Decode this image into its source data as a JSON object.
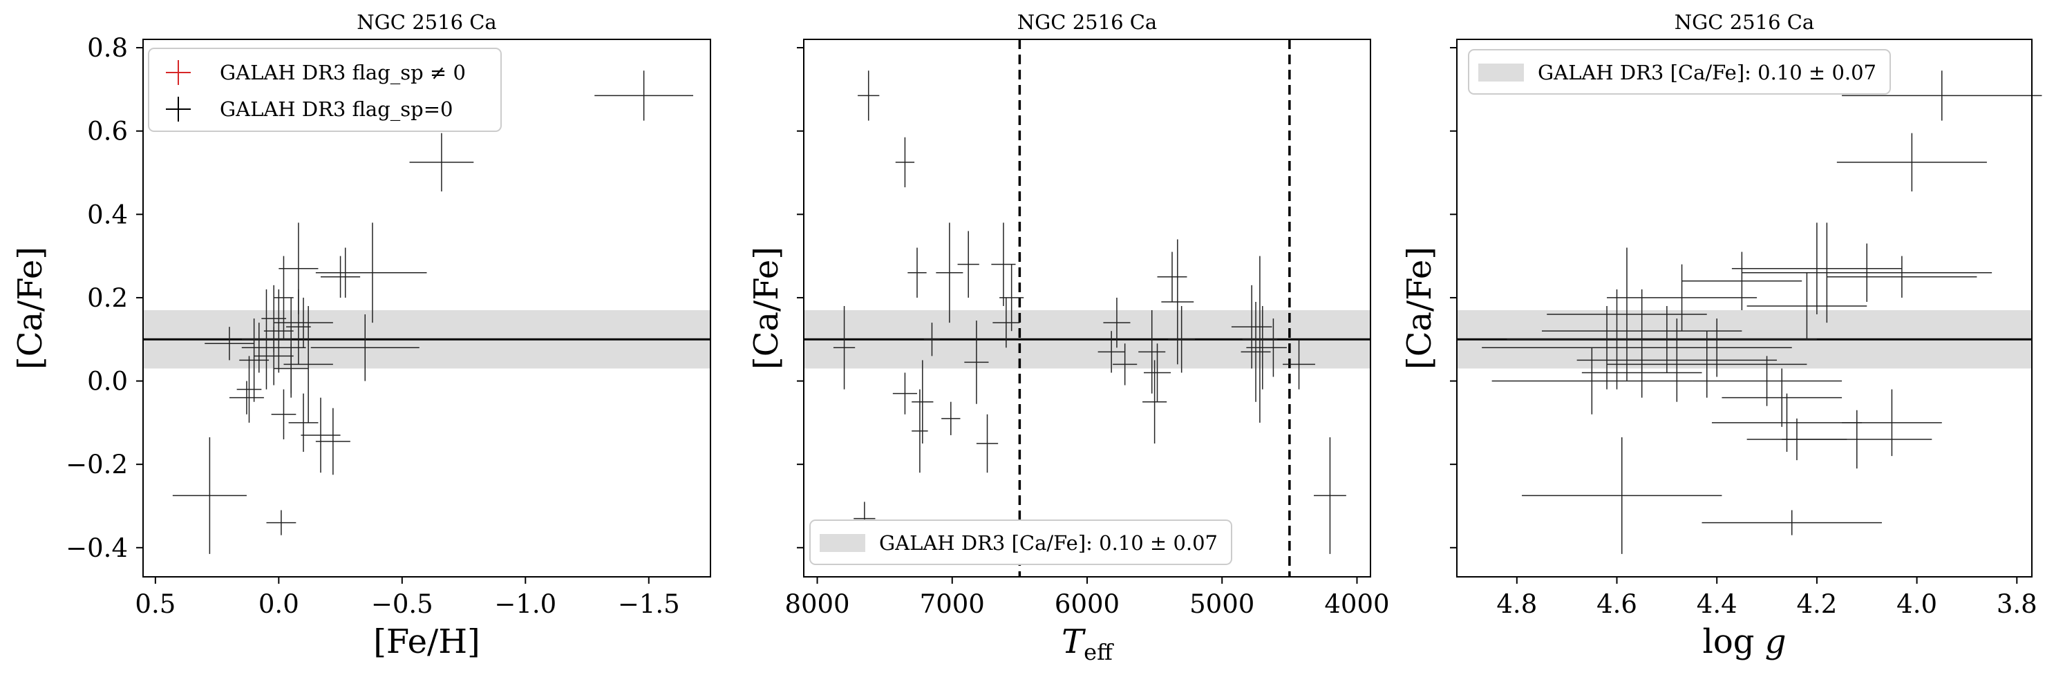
{
  "chart_data": [
    {
      "type": "scatter",
      "title": "NGC 2516 Ca",
      "xlabel": "[Fe/H]",
      "ylabel": "[Ca/Fe]",
      "xlim": [
        0.55,
        -1.75
      ],
      "ylim": [
        -0.47,
        0.82
      ],
      "xticks": [
        0.5,
        0.0,
        -0.5,
        -1.0,
        -1.5
      ],
      "xtick_labels": [
        "0.5",
        "0.0",
        "−0.5",
        "−1.0",
        "−1.5"
      ],
      "yticks": [
        -0.4,
        -0.2,
        0.0,
        0.2,
        0.4,
        0.6,
        0.8
      ],
      "ytick_labels": [
        "−0.4",
        "−0.2",
        "0.0",
        "0.2",
        "0.4",
        "0.6",
        "0.8"
      ],
      "band": {
        "center": 0.1,
        "low": 0.03,
        "high": 0.17
      },
      "legend": [
        {
          "label": "GALAH DR3 flag_sp ≠ 0",
          "color": "#d62728"
        },
        {
          "label": "GALAH DR3 flag_sp=0",
          "color": "#000000"
        }
      ],
      "points": [
        {
          "x": -1.48,
          "y": 0.685,
          "xerr": 0.2,
          "yerr": 0.06
        },
        {
          "x": -0.66,
          "y": 0.525,
          "xerr": 0.13,
          "yerr": 0.07
        },
        {
          "x": -0.27,
          "y": 0.26,
          "xerr": 0.12,
          "yerr": 0.06
        },
        {
          "x": -0.38,
          "y": 0.26,
          "xerr": 0.22,
          "yerr": 0.12
        },
        {
          "x": -0.25,
          "y": 0.25,
          "xerr": 0.08,
          "yerr": 0.05
        },
        {
          "x": 0.28,
          "y": -0.275,
          "xerr": 0.15,
          "yerr": 0.14
        },
        {
          "x": -0.01,
          "y": -0.34,
          "xerr": 0.06,
          "yerr": 0.03
        },
        {
          "x": 0.13,
          "y": -0.04,
          "xerr": 0.07,
          "yerr": 0.04
        },
        {
          "x": 0.12,
          "y": -0.02,
          "xerr": 0.05,
          "yerr": 0.08
        },
        {
          "x": 0.1,
          "y": 0.05,
          "xerr": 0.06,
          "yerr": 0.1
        },
        {
          "x": 0.05,
          "y": 0.1,
          "xerr": 0.1,
          "yerr": 0.12
        },
        {
          "x": 0.02,
          "y": 0.15,
          "xerr": 0.05,
          "yerr": 0.08
        },
        {
          "x": -0.02,
          "y": 0.2,
          "xerr": 0.04,
          "yerr": 0.1
        },
        {
          "x": -0.05,
          "y": 0.08,
          "xerr": 0.06,
          "yerr": 0.12
        },
        {
          "x": -0.1,
          "y": 0.14,
          "xerr": 0.12,
          "yerr": 0.06
        },
        {
          "x": -0.08,
          "y": 0.27,
          "xerr": 0.08,
          "yerr": 0.11
        },
        {
          "x": -0.12,
          "y": 0.04,
          "xerr": 0.1,
          "yerr": 0.14
        },
        {
          "x": -0.02,
          "y": -0.08,
          "xerr": 0.05,
          "yerr": 0.06
        },
        {
          "x": -0.1,
          "y": -0.1,
          "xerr": 0.06,
          "yerr": 0.07
        },
        {
          "x": -0.17,
          "y": -0.13,
          "xerr": 0.08,
          "yerr": 0.09
        },
        {
          "x": -0.22,
          "y": -0.145,
          "xerr": 0.07,
          "yerr": 0.08
        },
        {
          "x": -0.35,
          "y": 0.08,
          "xerr": 0.22,
          "yerr": 0.08
        },
        {
          "x": 0.2,
          "y": 0.09,
          "xerr": 0.1,
          "yerr": 0.04
        },
        {
          "x": 0.08,
          "y": 0.08,
          "xerr": 0.07,
          "yerr": 0.06
        },
        {
          "x": 0.0,
          "y": 0.12,
          "xerr": 0.06,
          "yerr": 0.1
        },
        {
          "x": -0.08,
          "y": 0.13,
          "xerr": 0.05,
          "yerr": 0.09
        },
        {
          "x": 0.02,
          "y": 0.06,
          "xerr": 0.08,
          "yerr": 0.07
        },
        {
          "x": -0.05,
          "y": 0.03,
          "xerr": 0.07,
          "yerr": 0.06
        }
      ]
    },
    {
      "type": "scatter",
      "title": "NGC 2516 Ca",
      "xlabel": "T_eff",
      "ylabel": "[Ca/Fe]",
      "xlim": [
        8100,
        3900
      ],
      "ylim": [
        -0.47,
        0.82
      ],
      "xticks": [
        8000,
        7000,
        6000,
        5000,
        4000
      ],
      "xtick_labels": [
        "8000",
        "7000",
        "6000",
        "5000",
        "4000"
      ],
      "band": {
        "center": 0.1,
        "low": 0.03,
        "high": 0.17
      },
      "vlines": [
        6500,
        4500
      ],
      "legend": [
        {
          "label": "GALAH DR3 [Ca/Fe]: 0.10 ± 0.07",
          "color": "#dddddd"
        }
      ],
      "points": [
        {
          "x": 7620,
          "y": 0.685,
          "xerr": 80,
          "yerr": 0.06
        },
        {
          "x": 7350,
          "y": 0.525,
          "xerr": 70,
          "yerr": 0.06
        },
        {
          "x": 7650,
          "y": -0.33,
          "xerr": 80,
          "yerr": 0.04
        },
        {
          "x": 7800,
          "y": 0.08,
          "xerr": 80,
          "yerr": 0.1
        },
        {
          "x": 7260,
          "y": 0.26,
          "xerr": 70,
          "yerr": 0.06
        },
        {
          "x": 7020,
          "y": 0.26,
          "xerr": 100,
          "yerr": 0.12
        },
        {
          "x": 6880,
          "y": 0.28,
          "xerr": 80,
          "yerr": 0.08
        },
        {
          "x": 6620,
          "y": 0.28,
          "xerr": 90,
          "yerr": 0.1
        },
        {
          "x": 6560,
          "y": 0.2,
          "xerr": 90,
          "yerr": 0.08
        },
        {
          "x": 6600,
          "y": 0.14,
          "xerr": 100,
          "yerr": 0.06
        },
        {
          "x": 7150,
          "y": 0.1,
          "xerr": 60,
          "yerr": 0.04
        },
        {
          "x": 6820,
          "y": 0.045,
          "xerr": 90,
          "yerr": 0.1
        },
        {
          "x": 7350,
          "y": -0.03,
          "xerr": 90,
          "yerr": 0.05
        },
        {
          "x": 7220,
          "y": -0.05,
          "xerr": 80,
          "yerr": 0.1
        },
        {
          "x": 7010,
          "y": -0.09,
          "xerr": 70,
          "yerr": 0.04
        },
        {
          "x": 7240,
          "y": -0.12,
          "xerr": 60,
          "yerr": 0.1
        },
        {
          "x": 6740,
          "y": -0.15,
          "xerr": 80,
          "yerr": 0.07
        },
        {
          "x": 5780,
          "y": 0.14,
          "xerr": 100,
          "yerr": 0.06
        },
        {
          "x": 5820,
          "y": 0.07,
          "xerr": 100,
          "yerr": 0.05
        },
        {
          "x": 5720,
          "y": 0.04,
          "xerr": 90,
          "yerr": 0.05
        },
        {
          "x": 5520,
          "y": 0.07,
          "xerr": 100,
          "yerr": 0.1
        },
        {
          "x": 5480,
          "y": 0.02,
          "xerr": 100,
          "yerr": 0.07
        },
        {
          "x": 5500,
          "y": -0.05,
          "xerr": 90,
          "yerr": 0.1
        },
        {
          "x": 5370,
          "y": 0.25,
          "xerr": 110,
          "yerr": 0.06
        },
        {
          "x": 5330,
          "y": 0.19,
          "xerr": 120,
          "yerr": 0.15
        },
        {
          "x": 5300,
          "y": 0.1,
          "xerr": 100,
          "yerr": 0.08
        },
        {
          "x": 4780,
          "y": 0.13,
          "xerr": 150,
          "yerr": 0.1
        },
        {
          "x": 4720,
          "y": 0.1,
          "xerr": 130,
          "yerr": 0.2
        },
        {
          "x": 4750,
          "y": 0.07,
          "xerr": 110,
          "yerr": 0.12
        },
        {
          "x": 4700,
          "y": 0.08,
          "xerr": 120,
          "yerr": 0.1
        },
        {
          "x": 4620,
          "y": 0.08,
          "xerr": 100,
          "yerr": 0.07
        },
        {
          "x": 4430,
          "y": 0.04,
          "xerr": 120,
          "yerr": 0.06
        },
        {
          "x": 4200,
          "y": -0.275,
          "xerr": 120,
          "yerr": 0.14
        }
      ]
    },
    {
      "type": "scatter",
      "title": "NGC 2516 Ca",
      "xlabel": "log g",
      "ylabel": "[Ca/Fe]",
      "xlim": [
        4.92,
        3.77
      ],
      "ylim": [
        -0.47,
        0.82
      ],
      "xticks": [
        4.8,
        4.6,
        4.4,
        4.2,
        4.0,
        3.8
      ],
      "xtick_labels": [
        "4.8",
        "4.6",
        "4.4",
        "4.2",
        "4.0",
        "3.8"
      ],
      "band": {
        "center": 0.1,
        "low": 0.03,
        "high": 0.17
      },
      "legend": [
        {
          "label": "GALAH DR3 [Ca/Fe]: 0.10 ± 0.07",
          "color": "#dddddd"
        }
      ],
      "points": [
        {
          "x": 3.95,
          "y": 0.685,
          "xerr": 0.2,
          "yerr": 0.06
        },
        {
          "x": 4.01,
          "y": 0.525,
          "xerr": 0.15,
          "yerr": 0.07
        },
        {
          "x": 4.59,
          "y": -0.275,
          "xerr": 0.2,
          "yerr": 0.14
        },
        {
          "x": 4.25,
          "y": -0.34,
          "xerr": 0.18,
          "yerr": 0.03
        },
        {
          "x": 4.2,
          "y": 0.27,
          "xerr": 0.17,
          "yerr": 0.11
        },
        {
          "x": 4.18,
          "y": 0.26,
          "xerr": 0.15,
          "yerr": 0.12
        },
        {
          "x": 4.1,
          "y": 0.26,
          "xerr": 0.25,
          "yerr": 0.07
        },
        {
          "x": 4.35,
          "y": 0.24,
          "xerr": 0.12,
          "yerr": 0.07
        },
        {
          "x": 4.03,
          "y": 0.25,
          "xerr": 0.15,
          "yerr": 0.05
        },
        {
          "x": 4.22,
          "y": 0.18,
          "xerr": 0.12,
          "yerr": 0.08
        },
        {
          "x": 4.47,
          "y": 0.2,
          "xerr": 0.15,
          "yerr": 0.08
        },
        {
          "x": 4.58,
          "y": 0.16,
          "xerr": 0.16,
          "yerr": 0.16
        },
        {
          "x": 4.55,
          "y": 0.12,
          "xerr": 0.2,
          "yerr": 0.1
        },
        {
          "x": 4.6,
          "y": 0.1,
          "xerr": 0.22,
          "yerr": 0.12
        },
        {
          "x": 4.5,
          "y": 0.1,
          "xerr": 0.3,
          "yerr": 0.08
        },
        {
          "x": 4.62,
          "y": 0.08,
          "xerr": 0.25,
          "yerr": 0.1
        },
        {
          "x": 4.4,
          "y": 0.08,
          "xerr": 0.15,
          "yerr": 0.07
        },
        {
          "x": 4.48,
          "y": 0.05,
          "xerr": 0.2,
          "yerr": 0.1
        },
        {
          "x": 4.42,
          "y": 0.04,
          "xerr": 0.2,
          "yerr": 0.08
        },
        {
          "x": 4.55,
          "y": 0.02,
          "xerr": 0.12,
          "yerr": 0.06
        },
        {
          "x": 4.3,
          "y": 0.0,
          "xerr": 0.15,
          "yerr": 0.06
        },
        {
          "x": 4.65,
          "y": 0.0,
          "xerr": 0.2,
          "yerr": 0.08
        },
        {
          "x": 4.27,
          "y": -0.04,
          "xerr": 0.12,
          "yerr": 0.07
        },
        {
          "x": 4.26,
          "y": -0.1,
          "xerr": 0.15,
          "yerr": 0.07
        },
        {
          "x": 4.24,
          "y": -0.14,
          "xerr": 0.1,
          "yerr": 0.05
        },
        {
          "x": 4.12,
          "y": -0.14,
          "xerr": 0.15,
          "yerr": 0.07
        },
        {
          "x": 4.05,
          "y": -0.1,
          "xerr": 0.1,
          "yerr": 0.08
        }
      ]
    }
  ]
}
